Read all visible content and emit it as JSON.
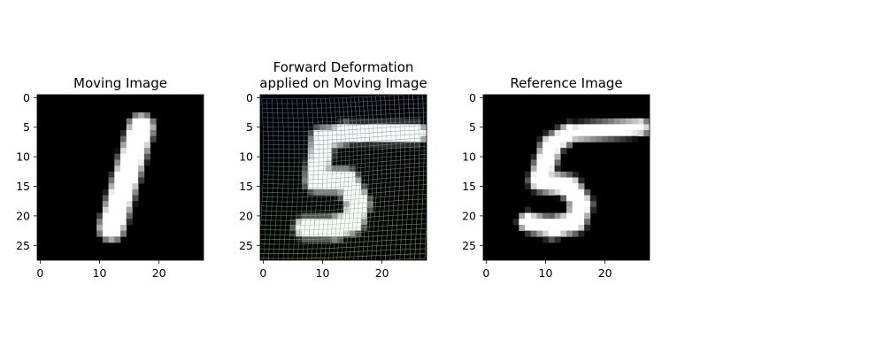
{
  "chart_data": [
    {
      "type": "heatmap",
      "title": "Moving Image",
      "colormap": "gray",
      "xlim": [
        -0.5,
        27.5
      ],
      "ylim": [
        27.5,
        -0.5
      ],
      "xticks": [
        0,
        10,
        20
      ],
      "yticks": [
        0,
        5,
        10,
        15,
        20,
        25
      ],
      "strokes": [
        {
          "from": [
            17,
            5
          ],
          "to": [
            12,
            22
          ],
          "width": 2.2
        }
      ],
      "deformation_grid": false
    },
    {
      "type": "heatmap",
      "title": "Forward Deformation\napplied on Moving Image",
      "colormap": "gray",
      "xlim": [
        -0.5,
        27.5
      ],
      "ylim": [
        27.5,
        -0.5
      ],
      "xticks": [
        0,
        10,
        20
      ],
      "yticks": [
        0,
        5,
        10,
        15,
        20,
        25
      ],
      "strokes": [
        {
          "from": [
            26,
            6
          ],
          "to": [
            14,
            6
          ],
          "width": 1.6
        },
        {
          "from": [
            14,
            6
          ],
          "to": [
            10,
            7
          ],
          "width": 1.8
        },
        {
          "from": [
            10,
            7
          ],
          "to": [
            9,
            14
          ],
          "width": 2.0
        },
        {
          "from": [
            9,
            14
          ],
          "to": [
            14,
            14
          ],
          "width": 2.0
        },
        {
          "from": [
            14,
            14
          ],
          "to": [
            16,
            18
          ],
          "width": 2.0
        },
        {
          "from": [
            16,
            18
          ],
          "to": [
            15,
            21
          ],
          "width": 2.0
        },
        {
          "from": [
            15,
            21
          ],
          "to": [
            12,
            22
          ],
          "width": 2.0
        },
        {
          "from": [
            12,
            22
          ],
          "to": [
            7,
            22
          ],
          "width": 1.8
        }
      ],
      "deformation_grid": true
    },
    {
      "type": "heatmap",
      "title": "Reference Image",
      "colormap": "gray",
      "xlim": [
        -0.5,
        27.5
      ],
      "ylim": [
        27.5,
        -0.5
      ],
      "xticks": [
        0,
        10,
        20
      ],
      "yticks": [
        0,
        5,
        10,
        15,
        20,
        25
      ],
      "strokes": [
        {
          "from": [
            26,
            5
          ],
          "to": [
            14,
            6
          ],
          "width": 1.4
        },
        {
          "from": [
            14,
            6
          ],
          "to": [
            11,
            8
          ],
          "width": 1.6
        },
        {
          "from": [
            11,
            8
          ],
          "to": [
            9,
            14
          ],
          "width": 1.8
        },
        {
          "from": [
            9,
            14
          ],
          "to": [
            14,
            15
          ],
          "width": 1.8
        },
        {
          "from": [
            14,
            15
          ],
          "to": [
            16,
            18
          ],
          "width": 1.8
        },
        {
          "from": [
            16,
            18
          ],
          "to": [
            15,
            21
          ],
          "width": 1.8
        },
        {
          "from": [
            15,
            21
          ],
          "to": [
            11,
            22
          ],
          "width": 1.8
        },
        {
          "from": [
            11,
            22
          ],
          "to": [
            7,
            21
          ],
          "width": 1.6
        }
      ],
      "deformation_grid": false
    }
  ]
}
